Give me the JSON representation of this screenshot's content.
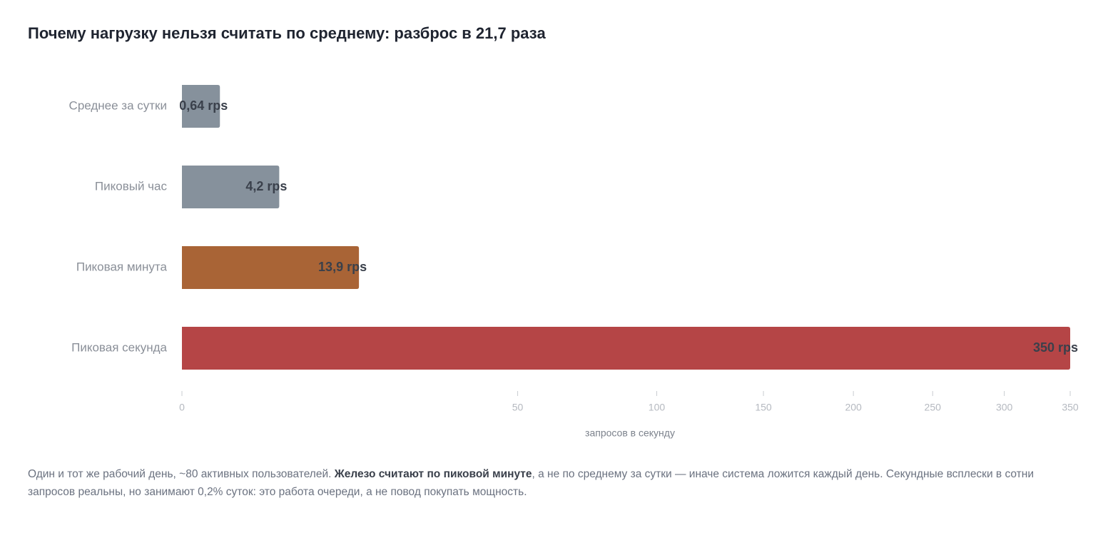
{
  "chart_data": {
    "type": "bar",
    "orientation": "horizontal",
    "title": "Почему нагрузку нельзя считать по среднему: разброс в 21,7 раза",
    "categories": [
      "Среднее за сутки",
      "Пиковый час",
      "Пиковая минута",
      "Пиковая секунда"
    ],
    "values": [
      0.64,
      4.2,
      13.9,
      350
    ],
    "value_labels": [
      "0,64 rps",
      "4,2 rps",
      "13,9 rps",
      "350 rps"
    ],
    "colors": [
      "#86919c",
      "#86919c",
      "#a96436",
      "#b54546"
    ],
    "x_ticks": [
      0,
      50,
      100,
      150,
      200,
      250,
      300,
      350
    ],
    "x_tick_labels": [
      "0",
      "50",
      "100",
      "150",
      "200",
      "250",
      "300",
      "350"
    ],
    "xlabel": "запросов в секунду",
    "ylabel": "",
    "xlim": [
      0,
      350
    ],
    "x_scale": "sqrt",
    "grid": false
  },
  "caption": {
    "part1": "Один и тот же рабочий день, ~80 активных пользователей. ",
    "bold": "Железо считают по пиковой минуте",
    "part2": ", а не по среднему за сутки — иначе система ложится каждый день. Секундные всплески в сотни запросов реальны, но занимают 0,2% суток: это работа очереди, а не повод покупать мощность."
  }
}
